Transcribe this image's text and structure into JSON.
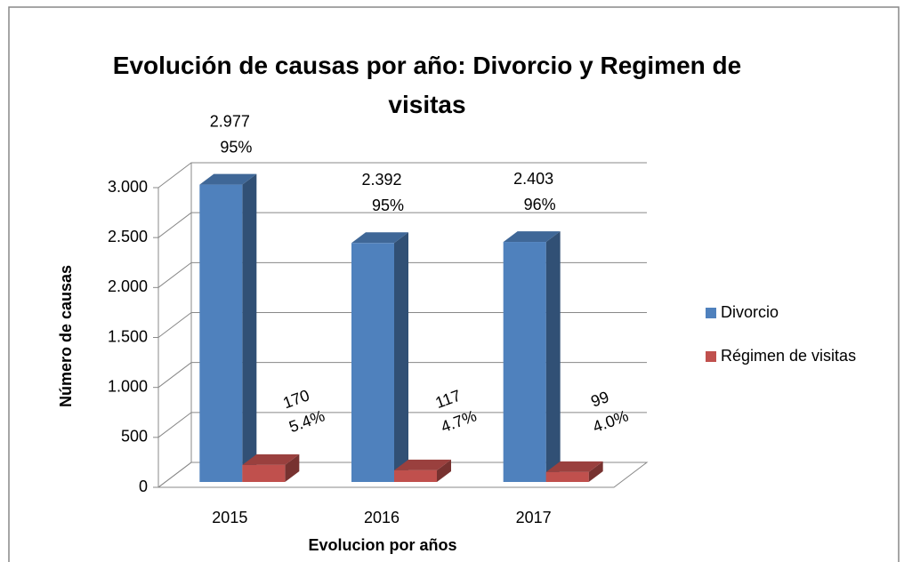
{
  "chart_data": {
    "type": "bar3d",
    "title": "Evolución de causas por año: Divorcio y Regimen de visitas",
    "x_label": "Evolucion por años",
    "y_label": "Número de causas",
    "categories": [
      "2015",
      "2016",
      "2017"
    ],
    "series": [
      {
        "name": "Divorcio",
        "color": "#4f81bd",
        "values": [
          2977,
          2392,
          2403
        ],
        "value_labels": [
          "2.977",
          "2.392",
          "2.403"
        ],
        "percent_labels": [
          "95%",
          "95%",
          "96%"
        ]
      },
      {
        "name": "Régimen de visitas",
        "color": "#c0504d",
        "values": [
          170,
          117,
          99
        ],
        "value_labels": [
          "170",
          "117",
          "99"
        ],
        "percent_labels": [
          "5.4%",
          "4.7%",
          "4.0%"
        ]
      }
    ],
    "ylim": [
      0,
      3000
    ],
    "yticks": [
      0,
      500,
      {
        "value": 1000,
        "label": "1.000"
      },
      {
        "value": 1500,
        "label": "1.500"
      },
      {
        "value": 2000,
        "label": "2.000"
      },
      {
        "value": 2500,
        "label": "2.500"
      },
      {
        "value": 3000,
        "label": "3.000"
      }
    ],
    "grid": true,
    "legend": "right"
  }
}
